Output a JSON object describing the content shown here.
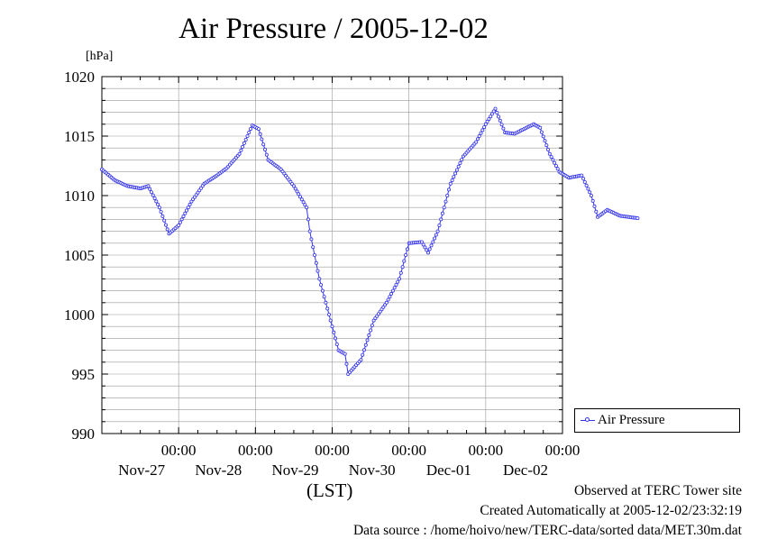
{
  "title": "Air Pressure / 2005-12-02",
  "footer": {
    "observed": "Observed at TERC Tower site",
    "created": "Created Automatically at 2005-12-02/23:32:19",
    "source": "Data source : /home/hoivo/new/TERC-data/sorted  data/MET.30m.dat"
  },
  "colors": {
    "series": "#3333ee",
    "grid": "#999999",
    "axis": "#000000"
  },
  "chart_data": {
    "type": "line",
    "title": "Air Pressure / 2005-12-02",
    "ylabel": "[hPa]",
    "xlabel": "(LST)",
    "ylim": [
      990,
      1020
    ],
    "y_ticks": [
      "990",
      "995",
      "1000",
      "1005",
      "1010",
      "1015",
      "1020"
    ],
    "xlim_days": [
      26.0,
      32.0
    ],
    "x_ticks": [
      {
        "time": "00:00",
        "date": "Nov-27"
      },
      {
        "time": "00:00",
        "date": "Nov-28"
      },
      {
        "time": "00:00",
        "date": "Nov-29"
      },
      {
        "time": "00:00",
        "date": "Nov-30"
      },
      {
        "time": "00:00",
        "date": "Dec-01"
      },
      {
        "time": "00:00",
        "date": "Dec-02"
      }
    ],
    "grid": true,
    "legend_position": "right",
    "series": [
      {
        "name": "Air Pressure",
        "marker": "circle",
        "points": [
          [
            "Nov-26 00:00",
            1012.2
          ],
          [
            "Nov-26 04:00",
            1011.3
          ],
          [
            "Nov-26 08:00",
            1010.8
          ],
          [
            "Nov-26 12:00",
            1010.6
          ],
          [
            "Nov-26 14:30",
            1010.8
          ],
          [
            "Nov-26 18:00",
            1009.0
          ],
          [
            "Nov-26 21:00",
            1006.8
          ],
          [
            "Nov-27 00:00",
            1007.5
          ],
          [
            "Nov-27 04:00",
            1009.5
          ],
          [
            "Nov-27 08:00",
            1011.0
          ],
          [
            "Nov-27 12:00",
            1011.7
          ],
          [
            "Nov-27 15:00",
            1012.3
          ],
          [
            "Nov-27 19:00",
            1013.5
          ],
          [
            "Nov-27 23:00",
            1015.9
          ],
          [
            "Nov-28 01:00",
            1015.6
          ],
          [
            "Nov-28 04:00",
            1013.0
          ],
          [
            "Nov-28 08:00",
            1012.2
          ],
          [
            "Nov-28 12:00",
            1010.8
          ],
          [
            "Nov-28 16:00",
            1009.0
          ],
          [
            "Nov-28 17:00",
            1007.0
          ],
          [
            "Nov-28 20:00",
            1003.0
          ],
          [
            "Nov-28 23:00",
            1000.0
          ],
          [
            "Nov-29 02:00",
            997.0
          ],
          [
            "Nov-29 04:00",
            996.7
          ],
          [
            "Nov-29 05:00",
            995.0
          ],
          [
            "Nov-29 09:00",
            996.2
          ],
          [
            "Nov-29 13:00",
            999.5
          ],
          [
            "Nov-29 17:00",
            1001.0
          ],
          [
            "Nov-29 21:00",
            1003.0
          ],
          [
            "Nov-30 00:00",
            1006.0
          ],
          [
            "Nov-30 04:00",
            1006.1
          ],
          [
            "Nov-30 06:00",
            1005.2
          ],
          [
            "Nov-30 09:00",
            1007.0
          ],
          [
            "Nov-30 13:00",
            1011.0
          ],
          [
            "Nov-30 17:00",
            1013.3
          ],
          [
            "Nov-30 21:00",
            1014.5
          ],
          [
            "Dec-01 00:00",
            1016.0
          ],
          [
            "Dec-01 03:00",
            1017.3
          ],
          [
            "Dec-01 06:00",
            1015.3
          ],
          [
            "Dec-01 09:00",
            1015.2
          ],
          [
            "Dec-01 12:00",
            1015.6
          ],
          [
            "Dec-01 15:00",
            1016.0
          ],
          [
            "Dec-01 17:00",
            1015.7
          ],
          [
            "Dec-01 20:00",
            1013.5
          ],
          [
            "Dec-01 23:00",
            1012.0
          ],
          [
            "Dec-02 02:00",
            1011.5
          ],
          [
            "Dec-02 06:00",
            1011.7
          ],
          [
            "Dec-02 09:00",
            1010.0
          ],
          [
            "Dec-02 11:00",
            1008.2
          ],
          [
            "Dec-02 14:00",
            1008.8
          ],
          [
            "Dec-02 18:00",
            1008.3
          ],
          [
            "Dec-02 23:30",
            1008.1
          ]
        ]
      }
    ]
  }
}
